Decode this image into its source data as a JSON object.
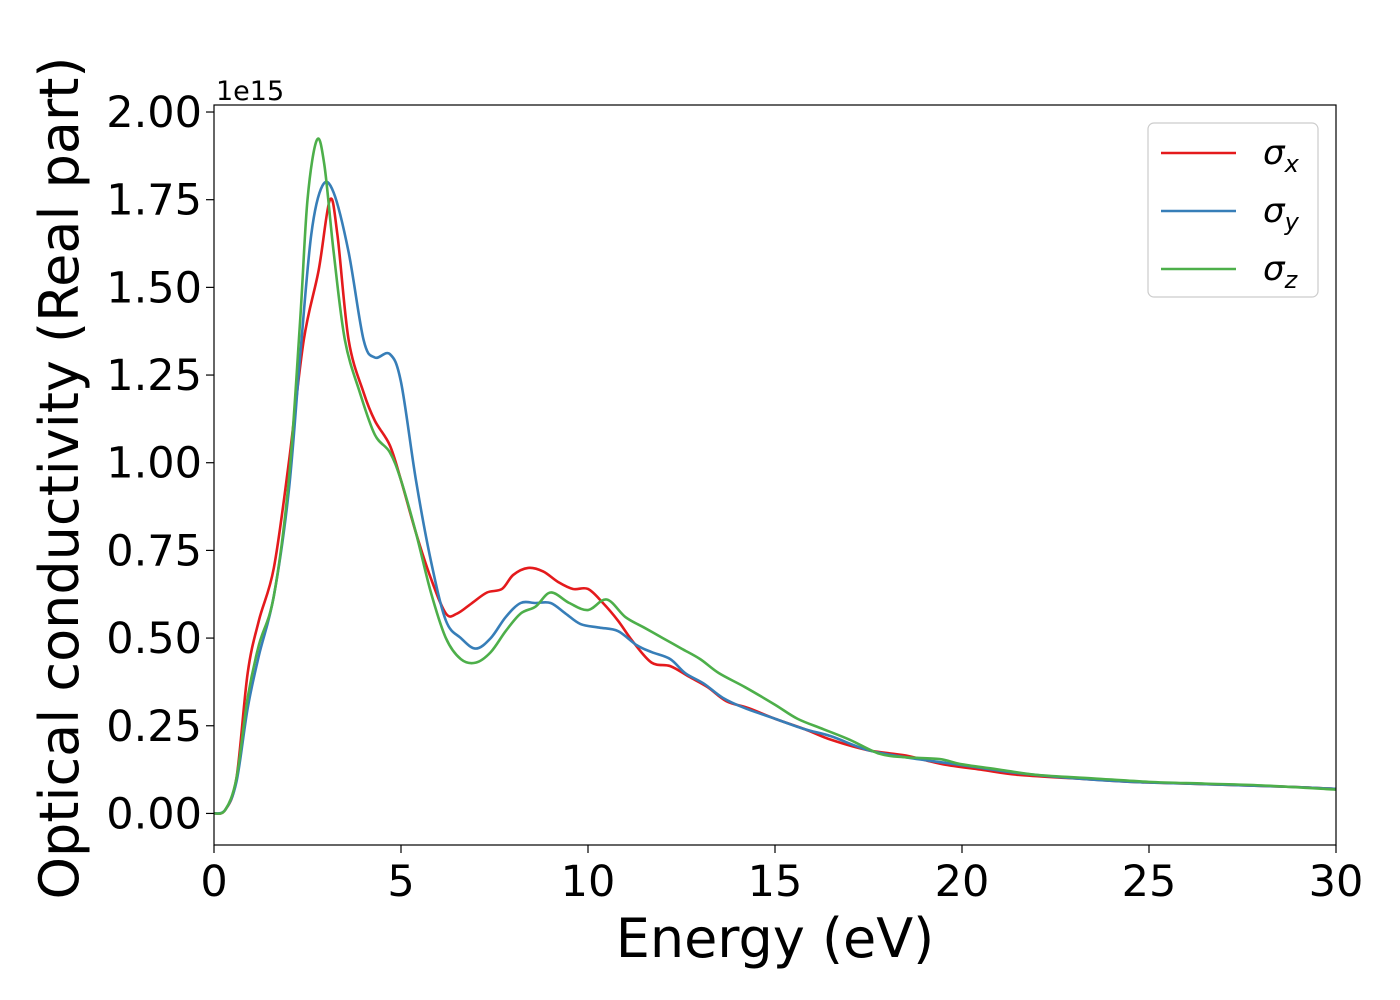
{
  "chart_data": {
    "type": "line",
    "xlabel": "Energy (eV)",
    "ylabel": "Optical conductivity (Real part)",
    "y_offset_label": "1e15",
    "y_scale": 1000000000000000.0,
    "xlim": [
      0,
      30
    ],
    "ylim": [
      -0.09,
      2.02
    ],
    "x_ticks": [
      0,
      5,
      10,
      15,
      20,
      25,
      30
    ],
    "x_tick_labels": [
      "0",
      "5",
      "10",
      "15",
      "20",
      "25",
      "30"
    ],
    "y_ticks": [
      0.0,
      0.25,
      0.5,
      0.75,
      1.0,
      1.25,
      1.5,
      1.75,
      2.0
    ],
    "y_tick_labels": [
      "0.00",
      "0.25",
      "0.50",
      "0.75",
      "1.00",
      "1.25",
      "1.50",
      "1.75",
      "2.00"
    ],
    "grid": false,
    "legend_position": "top-right",
    "series": [
      {
        "name": "σx",
        "legend_base": "σ",
        "legend_sub": "x",
        "color": "#e41a1c",
        "points": [
          [
            0,
            0
          ],
          [
            0.3,
            0.01
          ],
          [
            0.6,
            0.1
          ],
          [
            0.9,
            0.4
          ],
          [
            1.2,
            0.55
          ],
          [
            1.6,
            0.7
          ],
          [
            2.0,
            1.0
          ],
          [
            2.4,
            1.35
          ],
          [
            2.8,
            1.55
          ],
          [
            3.1,
            1.75
          ],
          [
            3.3,
            1.65
          ],
          [
            3.6,
            1.35
          ],
          [
            4.0,
            1.2
          ],
          [
            4.3,
            1.12
          ],
          [
            4.7,
            1.05
          ],
          [
            5.0,
            0.95
          ],
          [
            5.4,
            0.8
          ],
          [
            5.8,
            0.67
          ],
          [
            6.2,
            0.57
          ],
          [
            6.5,
            0.57
          ],
          [
            6.9,
            0.6
          ],
          [
            7.3,
            0.63
          ],
          [
            7.7,
            0.64
          ],
          [
            8.0,
            0.68
          ],
          [
            8.4,
            0.7
          ],
          [
            8.8,
            0.69
          ],
          [
            9.2,
            0.66
          ],
          [
            9.6,
            0.64
          ],
          [
            10.0,
            0.64
          ],
          [
            10.4,
            0.6
          ],
          [
            10.8,
            0.55
          ],
          [
            11.2,
            0.49
          ],
          [
            11.7,
            0.43
          ],
          [
            12.2,
            0.42
          ],
          [
            12.7,
            0.39
          ],
          [
            13.2,
            0.36
          ],
          [
            13.7,
            0.32
          ],
          [
            14.3,
            0.3
          ],
          [
            15.0,
            0.27
          ],
          [
            15.8,
            0.24
          ],
          [
            16.5,
            0.21
          ],
          [
            17.5,
            0.18
          ],
          [
            18.5,
            0.165
          ],
          [
            19.5,
            0.14
          ],
          [
            20.5,
            0.125
          ],
          [
            21.5,
            0.11
          ],
          [
            23.0,
            0.1
          ],
          [
            24.5,
            0.09
          ],
          [
            26.0,
            0.085
          ],
          [
            27.5,
            0.08
          ],
          [
            29.0,
            0.075
          ],
          [
            30.0,
            0.07
          ]
        ]
      },
      {
        "name": "σy",
        "legend_base": "σ",
        "legend_sub": "y",
        "color": "#377eb8",
        "points": [
          [
            0,
            0
          ],
          [
            0.3,
            0.01
          ],
          [
            0.6,
            0.09
          ],
          [
            0.9,
            0.3
          ],
          [
            1.2,
            0.45
          ],
          [
            1.6,
            0.62
          ],
          [
            2.0,
            0.92
          ],
          [
            2.3,
            1.3
          ],
          [
            2.6,
            1.65
          ],
          [
            2.9,
            1.79
          ],
          [
            3.2,
            1.77
          ],
          [
            3.6,
            1.6
          ],
          [
            4.0,
            1.35
          ],
          [
            4.3,
            1.3
          ],
          [
            4.7,
            1.31
          ],
          [
            5.0,
            1.23
          ],
          [
            5.4,
            0.95
          ],
          [
            5.8,
            0.72
          ],
          [
            6.2,
            0.55
          ],
          [
            6.6,
            0.5
          ],
          [
            7.0,
            0.47
          ],
          [
            7.4,
            0.5
          ],
          [
            7.8,
            0.56
          ],
          [
            8.2,
            0.6
          ],
          [
            8.6,
            0.6
          ],
          [
            9.0,
            0.6
          ],
          [
            9.4,
            0.57
          ],
          [
            9.8,
            0.54
          ],
          [
            10.3,
            0.53
          ],
          [
            10.8,
            0.52
          ],
          [
            11.3,
            0.48
          ],
          [
            11.7,
            0.46
          ],
          [
            12.2,
            0.44
          ],
          [
            12.6,
            0.4
          ],
          [
            13.1,
            0.37
          ],
          [
            13.6,
            0.33
          ],
          [
            14.2,
            0.3
          ],
          [
            15.0,
            0.27
          ],
          [
            15.8,
            0.24
          ],
          [
            16.5,
            0.22
          ],
          [
            17.5,
            0.18
          ],
          [
            18.5,
            0.16
          ],
          [
            19.5,
            0.145
          ],
          [
            20.5,
            0.13
          ],
          [
            21.5,
            0.115
          ],
          [
            23.0,
            0.1
          ],
          [
            24.5,
            0.09
          ],
          [
            26.0,
            0.085
          ],
          [
            27.5,
            0.08
          ],
          [
            29.0,
            0.075
          ],
          [
            30.0,
            0.07
          ]
        ]
      },
      {
        "name": "σz",
        "legend_base": "σ",
        "legend_sub": "z",
        "color": "#4daf4a",
        "points": [
          [
            0,
            0
          ],
          [
            0.3,
            0.01
          ],
          [
            0.6,
            0.1
          ],
          [
            0.9,
            0.33
          ],
          [
            1.2,
            0.48
          ],
          [
            1.6,
            0.62
          ],
          [
            2.0,
            0.95
          ],
          [
            2.3,
            1.4
          ],
          [
            2.5,
            1.75
          ],
          [
            2.75,
            1.92
          ],
          [
            2.95,
            1.85
          ],
          [
            3.2,
            1.6
          ],
          [
            3.5,
            1.35
          ],
          [
            3.9,
            1.2
          ],
          [
            4.3,
            1.08
          ],
          [
            4.7,
            1.03
          ],
          [
            5.0,
            0.95
          ],
          [
            5.4,
            0.8
          ],
          [
            5.8,
            0.63
          ],
          [
            6.2,
            0.5
          ],
          [
            6.6,
            0.44
          ],
          [
            7.0,
            0.43
          ],
          [
            7.4,
            0.46
          ],
          [
            7.8,
            0.52
          ],
          [
            8.2,
            0.57
          ],
          [
            8.6,
            0.59
          ],
          [
            9.0,
            0.63
          ],
          [
            9.5,
            0.6
          ],
          [
            10.0,
            0.58
          ],
          [
            10.5,
            0.61
          ],
          [
            11.0,
            0.56
          ],
          [
            11.5,
            0.53
          ],
          [
            12.0,
            0.5
          ],
          [
            12.5,
            0.47
          ],
          [
            13.0,
            0.44
          ],
          [
            13.5,
            0.4
          ],
          [
            14.2,
            0.36
          ],
          [
            15.0,
            0.31
          ],
          [
            15.6,
            0.27
          ],
          [
            16.3,
            0.24
          ],
          [
            17.0,
            0.21
          ],
          [
            17.8,
            0.17
          ],
          [
            18.5,
            0.16
          ],
          [
            19.4,
            0.155
          ],
          [
            20.0,
            0.14
          ],
          [
            21.0,
            0.125
          ],
          [
            22.0,
            0.11
          ],
          [
            23.5,
            0.1
          ],
          [
            25.0,
            0.09
          ],
          [
            26.5,
            0.085
          ],
          [
            28.0,
            0.08
          ],
          [
            30.0,
            0.068
          ]
        ]
      }
    ]
  }
}
